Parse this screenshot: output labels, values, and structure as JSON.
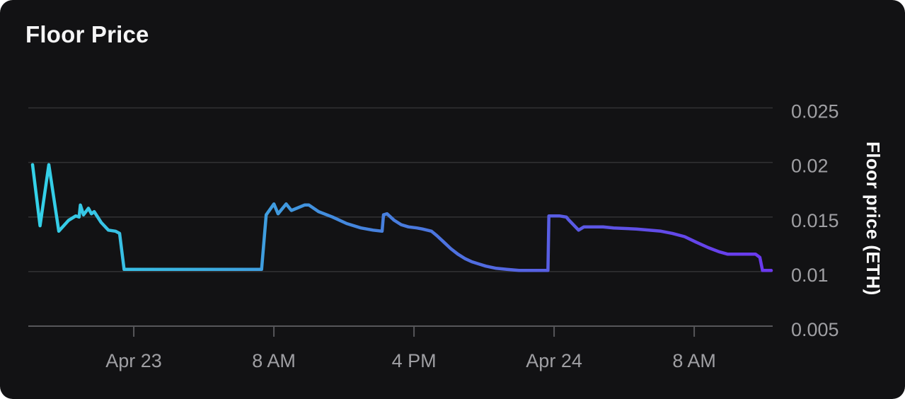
{
  "page": {
    "background": "#ffffff",
    "card_background": "#121214",
    "grid_color": "#323234",
    "axis_color": "#56565a",
    "tick_label_color": "#9f9fa3",
    "title_color": "#f5f5f6",
    "axis_title_color": "#fafafa"
  },
  "header": {
    "title": "Floor Price"
  },
  "chart_data": {
    "type": "line",
    "title": "Floor Price",
    "xlabel": "",
    "ylabel": "Floor price (ETH)",
    "x_unit": "hours since Apr 23 00:00",
    "x_range_hours": [
      -5.78,
      36.4
    ],
    "y_range": [
      0.005,
      0.0275
    ],
    "grid": true,
    "legend": "none",
    "line_width": 4.5,
    "gradient_stops": [
      {
        "offset": 0.0,
        "color": "#34d2e8"
      },
      {
        "offset": 0.22,
        "color": "#3bb0e1"
      },
      {
        "offset": 0.45,
        "color": "#4583dd"
      },
      {
        "offset": 0.7,
        "color": "#585ee3"
      },
      {
        "offset": 1.0,
        "color": "#6b38ee"
      }
    ],
    "x_ticks": [
      {
        "hour": 0,
        "label": "Apr 23"
      },
      {
        "hour": 8,
        "label": "8 AM"
      },
      {
        "hour": 16,
        "label": "4 PM"
      },
      {
        "hour": 24,
        "label": "Apr 24"
      },
      {
        "hour": 32,
        "label": "8 AM"
      }
    ],
    "y_ticks": [
      {
        "value": 0.025,
        "label": "0.025"
      },
      {
        "value": 0.02,
        "label": "0.02"
      },
      {
        "value": 0.015,
        "label": "0.015"
      },
      {
        "value": 0.01,
        "label": "0.01"
      },
      {
        "value": 0.005,
        "label": "0.005"
      }
    ],
    "series": [
      {
        "name": "Floor price (ETH)",
        "points": [
          [
            -5.78,
            0.0198
          ],
          [
            -5.35,
            0.0142
          ],
          [
            -4.85,
            0.0198
          ],
          [
            -4.28,
            0.0137
          ],
          [
            -3.72,
            0.0147
          ],
          [
            -3.31,
            0.0151
          ],
          [
            -3.12,
            0.015
          ],
          [
            -3.05,
            0.0161
          ],
          [
            -2.87,
            0.0152
          ],
          [
            -2.59,
            0.0158
          ],
          [
            -2.42,
            0.0153
          ],
          [
            -2.26,
            0.0155
          ],
          [
            -1.86,
            0.0145
          ],
          [
            -1.45,
            0.0138
          ],
          [
            -1.05,
            0.0137
          ],
          [
            -0.81,
            0.0135
          ],
          [
            -0.55,
            0.0102
          ],
          [
            7.3,
            0.0102
          ],
          [
            7.56,
            0.0152
          ],
          [
            8.0,
            0.0162
          ],
          [
            8.24,
            0.0153
          ],
          [
            8.7,
            0.0162
          ],
          [
            9.0,
            0.0156
          ],
          [
            9.75,
            0.0161
          ],
          [
            10.0,
            0.0161
          ],
          [
            10.55,
            0.0155
          ],
          [
            11.35,
            0.015
          ],
          [
            12.16,
            0.0144
          ],
          [
            12.97,
            0.014
          ],
          [
            13.66,
            0.0138
          ],
          [
            14.18,
            0.0137
          ],
          [
            14.26,
            0.0152
          ],
          [
            14.46,
            0.0153
          ],
          [
            14.87,
            0.0147
          ],
          [
            15.27,
            0.0143
          ],
          [
            15.68,
            0.0141
          ],
          [
            16.16,
            0.014
          ],
          [
            16.48,
            0.0139
          ],
          [
            17.0,
            0.0137
          ],
          [
            17.3,
            0.0133
          ],
          [
            17.7,
            0.0127
          ],
          [
            18.1,
            0.0121
          ],
          [
            18.5,
            0.0116
          ],
          [
            18.9,
            0.0112
          ],
          [
            19.3,
            0.0109
          ],
          [
            19.7,
            0.0107
          ],
          [
            20.1,
            0.0105
          ],
          [
            20.7,
            0.0103
          ],
          [
            21.3,
            0.0102
          ],
          [
            22.0,
            0.0101
          ],
          [
            23.65,
            0.0101
          ],
          [
            23.7,
            0.0151
          ],
          [
            24.3,
            0.0151
          ],
          [
            24.7,
            0.015
          ],
          [
            24.8,
            0.0148
          ],
          [
            25.4,
            0.0138
          ],
          [
            25.7,
            0.0141
          ],
          [
            26.8,
            0.0141
          ],
          [
            27.4,
            0.014
          ],
          [
            28.7,
            0.0139
          ],
          [
            30.1,
            0.0137
          ],
          [
            30.75,
            0.0135
          ],
          [
            31.45,
            0.0132
          ],
          [
            32.1,
            0.0127
          ],
          [
            32.8,
            0.0122
          ],
          [
            33.45,
            0.0118
          ],
          [
            33.9,
            0.0116
          ],
          [
            35.5,
            0.0116
          ],
          [
            35.75,
            0.0113
          ],
          [
            35.9,
            0.0101
          ],
          [
            36.4,
            0.0101
          ]
        ]
      }
    ]
  }
}
